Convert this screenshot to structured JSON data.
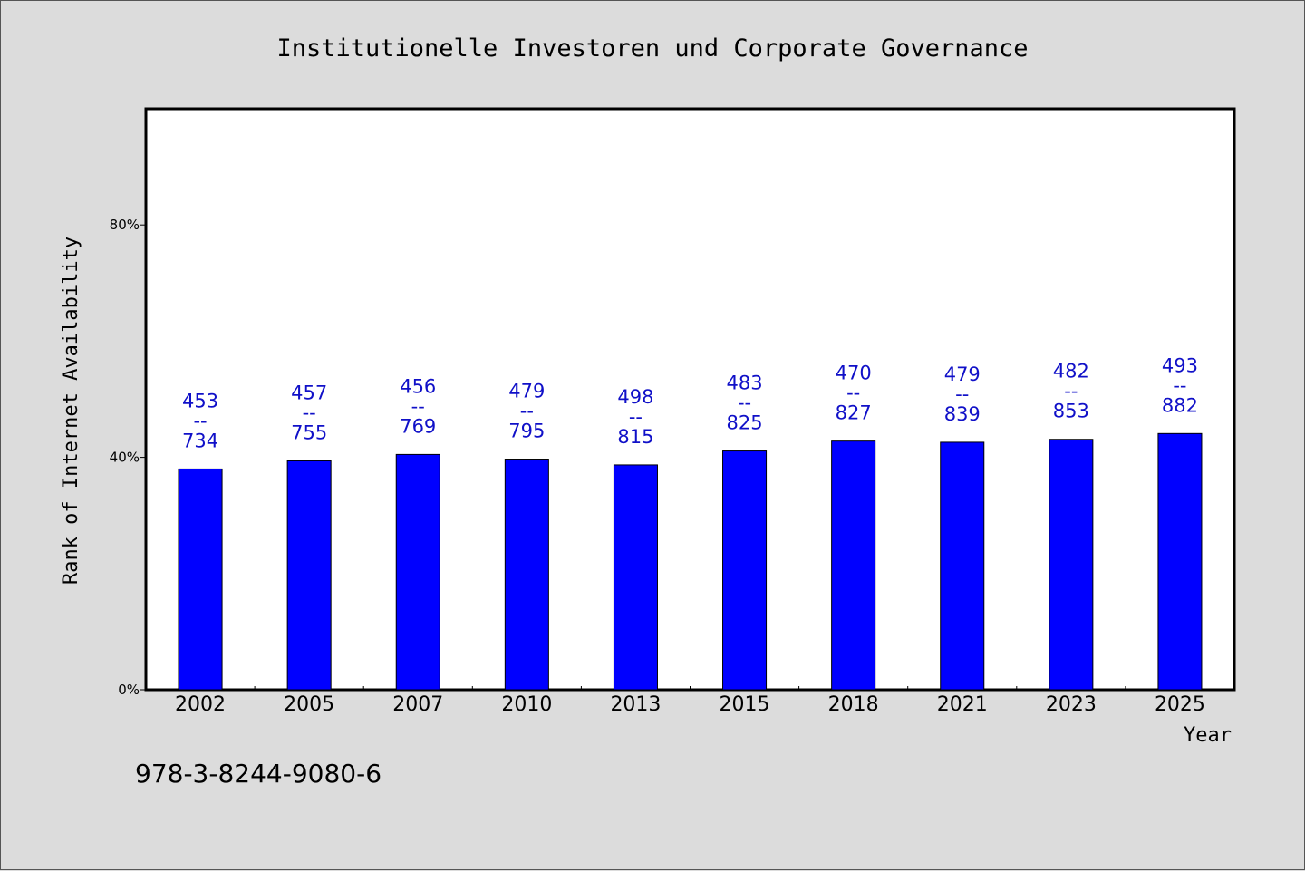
{
  "chart_data": {
    "type": "bar",
    "title": "Institutionelle Investoren und Corporate Governance",
    "xlabel": "Year",
    "ylabel": "Rank of Internet Availability",
    "categories": [
      "2002",
      "2005",
      "2007",
      "2010",
      "2013",
      "2015",
      "2018",
      "2021",
      "2023",
      "2025"
    ],
    "values": [
      0.38,
      0.394,
      0.405,
      0.397,
      0.387,
      0.411,
      0.428,
      0.426,
      0.431,
      0.441
    ],
    "bar_labels": [
      [
        "453",
        "--",
        "734"
      ],
      [
        "457",
        "--",
        "755"
      ],
      [
        "456",
        "--",
        "769"
      ],
      [
        "479",
        "--",
        "795"
      ],
      [
        "498",
        "--",
        "815"
      ],
      [
        "483",
        "--",
        "825"
      ],
      [
        "470",
        "--",
        "827"
      ],
      [
        "479",
        "--",
        "839"
      ],
      [
        "482",
        "--",
        "853"
      ],
      [
        "493",
        "--",
        "882"
      ]
    ],
    "yticks": [
      {
        "value": 0,
        "label": "0%"
      },
      {
        "value": 0.4,
        "label": "40%"
      },
      {
        "value": 0.8,
        "label": "80%"
      }
    ],
    "ylim": [
      0,
      1
    ],
    "grid": false,
    "legend": "none",
    "bar_color": "#0000ff",
    "label_color": "#1010c8",
    "plot_background": "#ffffff",
    "page_background": "#dcdcdc"
  },
  "footer": {
    "isbn": "978-3-8244-9080-6"
  }
}
